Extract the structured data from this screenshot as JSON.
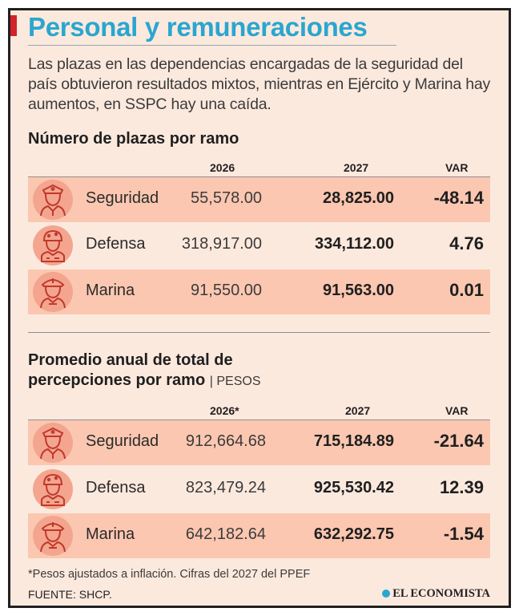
{
  "title": "Personal y remuneraciones",
  "intro": "Las plazas en las dependencias encargadas de la seguridad del país obtuvieron resultados mixtos, mientras en Ejército y Marina hay aumentos, en SSPC hay una caída.",
  "section1": {
    "title": "Número de plazas por ramo",
    "headers": {
      "c1": "2026",
      "c2": "2027",
      "c3": "VAR"
    },
    "rows": [
      {
        "label": "Seguridad",
        "v2026": "55,578.00",
        "v2027": "28,825.00",
        "var": "-48.14",
        "icon": "police-officer-icon"
      },
      {
        "label": "Defensa",
        "v2026": "318,917.00",
        "v2027": "334,112.00",
        "var": "4.76",
        "icon": "army-soldier-icon"
      },
      {
        "label": "Marina",
        "v2026": "91,550.00",
        "v2027": "91,563.00",
        "var": "0.01",
        "icon": "navy-sailor-icon"
      }
    ]
  },
  "section2": {
    "title_line1": "Promedio anual de total de",
    "title_line2": "percepciones por ramo",
    "unit": "| PESOS",
    "headers": {
      "c1": "2026*",
      "c2": "2027",
      "c3": "VAR"
    },
    "rows": [
      {
        "label": "Seguridad",
        "v2026": "912,664.68",
        "v2027": "715,184.89",
        "var": "-21.64",
        "icon": "police-officer-icon"
      },
      {
        "label": "Defensa",
        "v2026": "823,479.24",
        "v2027": "925,530.42",
        "var": "12.39",
        "icon": "army-soldier-icon"
      },
      {
        "label": "Marina",
        "v2026": "642,182.64",
        "v2027": "632,292.75",
        "var": "-1.54",
        "icon": "navy-sailor-icon"
      }
    ]
  },
  "footnote": "*Pesos ajustados a inflación. Cifras del 2027 del PPEF",
  "source": "FUENTE: SHCP.",
  "brand": "EL ECONOMISTA",
  "colors": {
    "title": "#2aa6cf",
    "row_highlight": "#fbc7b0",
    "background": "#fce9de",
    "icon_circle": "#f4a58f",
    "icon_stroke": "#c0392b",
    "accent_red": "#d2232a"
  }
}
